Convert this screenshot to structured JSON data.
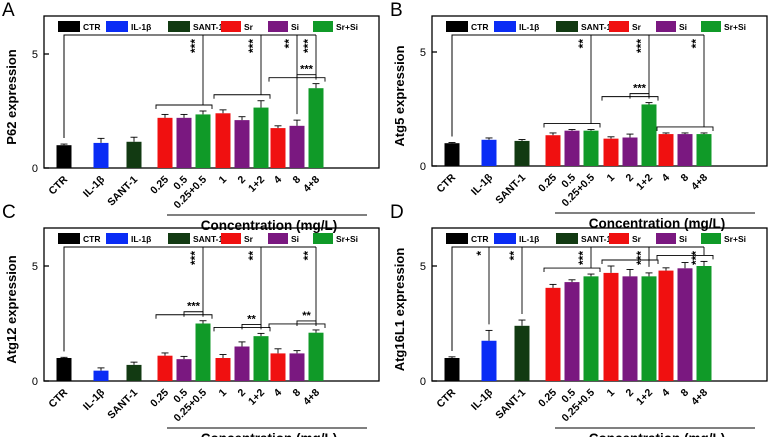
{
  "chart_data": [
    {
      "type": "bar",
      "panel_letter": "A",
      "ylabel": "P62 expression",
      "ylim": [
        0,
        5
      ],
      "yticks": [
        "0",
        "5"
      ],
      "xlabel": "Concentration (mg/L)",
      "legend": [
        "CTR",
        "IL-1β",
        "SANT-1",
        "Sr",
        "Si",
        "Sr+Si"
      ],
      "categories": [
        "CTR",
        "IL-1β",
        "SANT-1",
        "0.25",
        "0.5",
        "0.25+0.5",
        "1",
        "2",
        "1+2",
        "4",
        "8",
        "4+8"
      ],
      "values": [
        1.0,
        1.1,
        1.15,
        2.2,
        2.2,
        2.35,
        2.4,
        2.1,
        2.65,
        1.75,
        1.85,
        3.5
      ],
      "errors": [
        0.05,
        0.2,
        0.2,
        0.15,
        0.15,
        0.15,
        0.15,
        0.15,
        0.3,
        0.1,
        0.25,
        0.2
      ],
      "brackets": [
        {
          "type": "ctr",
          "to": 5,
          "label": "***"
        },
        {
          "type": "ctr",
          "to": 8,
          "label": "***"
        },
        {
          "type": "ctr",
          "to": 10,
          "label": "**"
        },
        {
          "type": "ctr",
          "to": 11,
          "label": "***"
        },
        {
          "type": "line",
          "from": 10,
          "to": 11,
          "label": "***"
        }
      ]
    },
    {
      "type": "bar",
      "panel_letter": "B",
      "ylabel": "Atg5 expression",
      "ylim": [
        0,
        5
      ],
      "yticks": [
        "0",
        "5"
      ],
      "xlabel": "Concentration (mg/L)",
      "legend": [
        "CTR",
        "IL-1β",
        "SANT-1",
        "Sr",
        "Si",
        "Sr+Si"
      ],
      "categories": [
        "CTR",
        "IL-1β",
        "SANT-1",
        "0.25",
        "0.5",
        "0.25+0.5",
        "1",
        "2",
        "1+2",
        "4",
        "8",
        "4+8"
      ],
      "values": [
        1.0,
        1.15,
        1.1,
        1.35,
        1.55,
        1.55,
        1.2,
        1.25,
        2.7,
        1.4,
        1.4,
        1.4
      ],
      "errors": [
        0.03,
        0.08,
        0.06,
        0.1,
        0.05,
        0.05,
        0.08,
        0.15,
        0.08,
        0.05,
        0.05,
        0.05
      ],
      "brackets": [
        {
          "type": "ctr",
          "to": 5,
          "label": "**"
        },
        {
          "type": "ctr",
          "to": 8,
          "label": "***"
        },
        {
          "type": "ctr",
          "to": 11,
          "label": "**"
        },
        {
          "type": "line",
          "from": 7,
          "to": 8,
          "label": "***"
        }
      ]
    },
    {
      "type": "bar",
      "panel_letter": "C",
      "ylabel": "Atg12 expression",
      "ylim": [
        0,
        5
      ],
      "yticks": [
        "0",
        "5"
      ],
      "xlabel": "Concentration (mg/L)",
      "legend": [
        "CTR",
        "IL-1β",
        "SANT-1",
        "Sr",
        "Si",
        "Sr+Si"
      ],
      "categories": [
        "CTR",
        "IL-1β",
        "SANT-1",
        "0.25",
        "0.5",
        "0.25+0.5",
        "1",
        "2",
        "1+2",
        "4",
        "8",
        "4+8"
      ],
      "values": [
        1.0,
        0.45,
        0.7,
        1.1,
        0.95,
        2.5,
        1.0,
        1.5,
        1.95,
        1.2,
        1.2,
        2.1
      ],
      "errors": [
        0.03,
        0.12,
        0.12,
        0.12,
        0.12,
        0.12,
        0.15,
        0.2,
        0.12,
        0.2,
        0.12,
        0.12
      ],
      "brackets": [
        {
          "type": "ctr",
          "to": 5,
          "label": "***"
        },
        {
          "type": "ctr",
          "to": 8,
          "label": "**"
        },
        {
          "type": "ctr",
          "to": 11,
          "label": "**"
        },
        {
          "type": "line",
          "from": 4,
          "to": 5,
          "label": "***"
        },
        {
          "type": "line",
          "from": 7,
          "to": 8,
          "label": "**"
        },
        {
          "type": "line",
          "from": 10,
          "to": 11,
          "label": "**"
        }
      ]
    },
    {
      "type": "bar",
      "panel_letter": "D",
      "ylabel": "Atg16L1 expression",
      "ylim": [
        0,
        5
      ],
      "yticks": [
        "0",
        "5"
      ],
      "xlabel": "Concentration (mg/L)",
      "legend": [
        "CTR",
        "IL-1β",
        "SANT-1",
        "Sr",
        "Si",
        "Sr+Si"
      ],
      "categories": [
        "CTR",
        "IL-1β",
        "SANT-1",
        "0.25",
        "0.5",
        "0.25+0.5",
        "1",
        "2",
        "1+2",
        "4",
        "8",
        "4+8"
      ],
      "values": [
        1.0,
        1.75,
        2.4,
        4.05,
        4.3,
        4.55,
        4.7,
        4.55,
        4.55,
        4.8,
        4.9,
        5.0
      ],
      "errors": [
        0.05,
        0.45,
        0.25,
        0.15,
        0.1,
        0.1,
        0.3,
        0.3,
        0.15,
        0.12,
        0.25,
        0.2
      ],
      "brackets": [
        {
          "type": "ctr",
          "to": 1,
          "label": "*"
        },
        {
          "type": "ctr",
          "to": 2,
          "label": "**"
        },
        {
          "type": "ctr",
          "to": 5,
          "label": "***"
        },
        {
          "type": "ctr",
          "to": 8,
          "label": "***"
        },
        {
          "type": "ctr",
          "to": 11,
          "label": "***"
        }
      ]
    }
  ],
  "colors": {
    "CTR": "#000000",
    "IL-1β": "#0a2cf5",
    "SANT-1": "#123a12",
    "Sr": "#f01010",
    "Si": "#7a1880",
    "Sr+Si": "#109a28"
  }
}
